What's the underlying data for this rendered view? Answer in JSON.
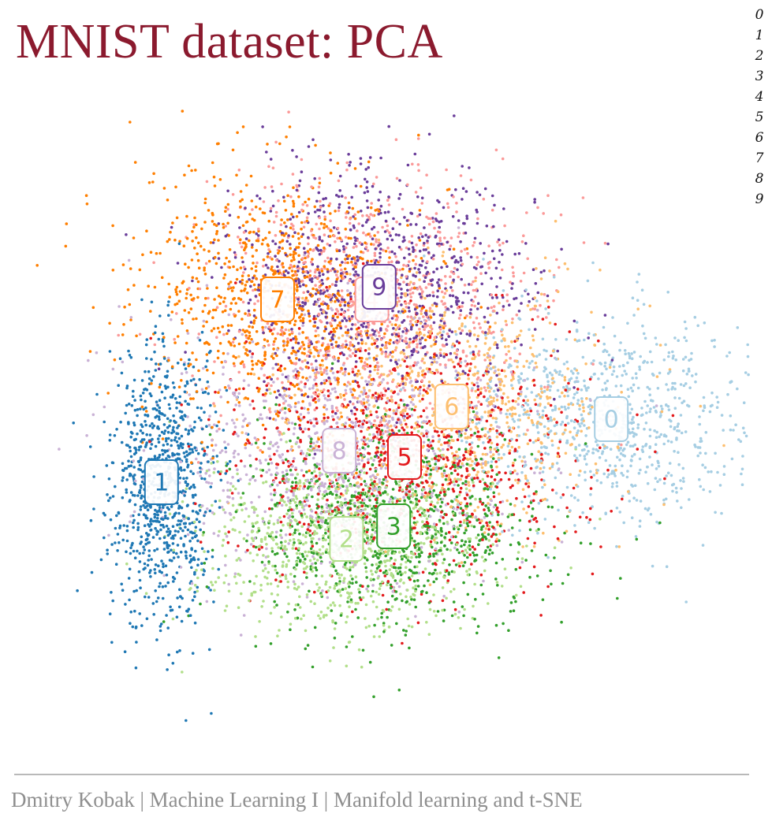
{
  "slide": {
    "title": "MNIST dataset: PCA",
    "footer": "Dmitry Kobak  |  Machine Learning I  | Manifold learning and t-SNE"
  },
  "digit_legend": [
    "0",
    "1",
    "2",
    "3",
    "4",
    "5",
    "6",
    "7",
    "8",
    "9"
  ],
  "chart_data": {
    "type": "scatter",
    "title": "",
    "xlabel": "",
    "ylabel": "",
    "grid": false,
    "axes_visible": false,
    "xlim": [
      -1,
      1
    ],
    "ylim": [
      -1,
      1
    ],
    "series": [
      {
        "label": "0",
        "color": "#a6cee3",
        "center": [
          0.62,
          0.02
        ],
        "spread": [
          0.22,
          0.16
        ]
      },
      {
        "label": "1",
        "color": "#1f78b4",
        "center": [
          -0.62,
          -0.18
        ],
        "spread": [
          0.07,
          0.22
        ]
      },
      {
        "label": "2",
        "color": "#b2df8a",
        "center": [
          -0.11,
          -0.36
        ],
        "spread": [
          0.2,
          0.14
        ]
      },
      {
        "label": "3",
        "color": "#33a02c",
        "center": [
          0.02,
          -0.32
        ],
        "spread": [
          0.2,
          0.16
        ]
      },
      {
        "label": "4",
        "color": "#fb9a99",
        "center": [
          -0.04,
          0.4
        ],
        "spread": [
          0.22,
          0.2
        ]
      },
      {
        "label": "5",
        "color": "#e31a1c",
        "center": [
          0.05,
          -0.1
        ],
        "spread": [
          0.24,
          0.2
        ]
      },
      {
        "label": "6",
        "color": "#fdbf6f",
        "center": [
          0.18,
          0.06
        ],
        "spread": [
          0.22,
          0.2
        ]
      },
      {
        "label": "7",
        "color": "#ff7f00",
        "center": [
          -0.3,
          0.4
        ],
        "spread": [
          0.2,
          0.2
        ]
      },
      {
        "label": "8",
        "color": "#cab2d6",
        "center": [
          -0.13,
          -0.08
        ],
        "spread": [
          0.24,
          0.2
        ]
      },
      {
        "label": "9",
        "color": "#6a3d9a",
        "center": [
          -0.02,
          0.44
        ],
        "spread": [
          0.2,
          0.18
        ]
      }
    ]
  }
}
